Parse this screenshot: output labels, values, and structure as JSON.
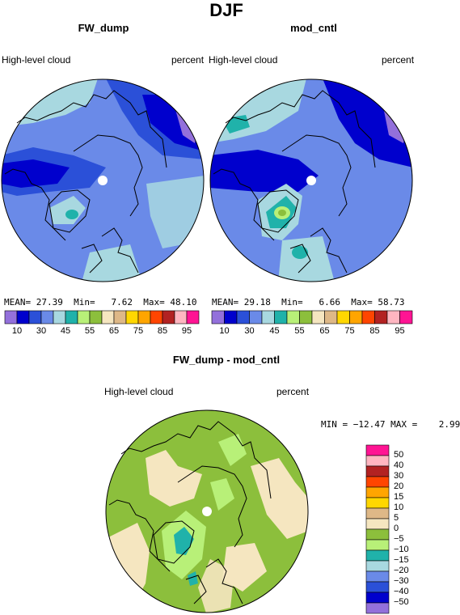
{
  "main_title": "DJF",
  "panels": [
    {
      "title": "FW_dump",
      "left_label": "High-level cloud",
      "right_label": "percent",
      "stats": {
        "mean_label": "MEAN=",
        "mean": "27.39",
        "min_label": "Min=",
        "min": "7.62",
        "max_label": "Max=",
        "max": "48.10"
      }
    },
    {
      "title": "mod_cntl",
      "left_label": "High-level cloud",
      "right_label": "percent",
      "stats": {
        "mean_label": "MEAN=",
        "mean": "29.18",
        "min_label": "Min=",
        "min": "6.66",
        "max_label": "Max=",
        "max": "58.73"
      }
    },
    {
      "title": "FW_dump - mod_cntl",
      "left_label": "High-level cloud",
      "right_label": "percent",
      "minmax_text": "MIN = −12.47 MAX =    2.99"
    }
  ],
  "colorbar_top": {
    "colors": [
      "#9370db",
      "#0000cd",
      "#2b50d8",
      "#6a8ae8",
      "#a8d8e0",
      "#20b2aa",
      "#b8f078",
      "#8cbf3c",
      "#f5e6c0",
      "#deb887",
      "#ffd700",
      "#ffa500",
      "#ff4500",
      "#b22222",
      "#ffb6c1",
      "#ff1493"
    ],
    "ticks": [
      "10",
      "30",
      "45",
      "55",
      "65",
      "75",
      "85",
      "95"
    ]
  },
  "colorbar_diff": {
    "colors_top_to_bottom": [
      "#ff1493",
      "#ffb6c1",
      "#b22222",
      "#ff4500",
      "#ffa500",
      "#ffd700",
      "#deb887",
      "#f5e6c0",
      "#8cbf3c",
      "#b8f078",
      "#20b2aa",
      "#a8d8e0",
      "#6a8ae8",
      "#2b50d8",
      "#0000cd",
      "#9370db"
    ],
    "ticks": [
      "50",
      "40",
      "30",
      "20",
      "15",
      "10",
      "5",
      "0",
      "−5",
      "−10",
      "−15",
      "−20",
      "−30",
      "−40",
      "−50"
    ]
  }
}
